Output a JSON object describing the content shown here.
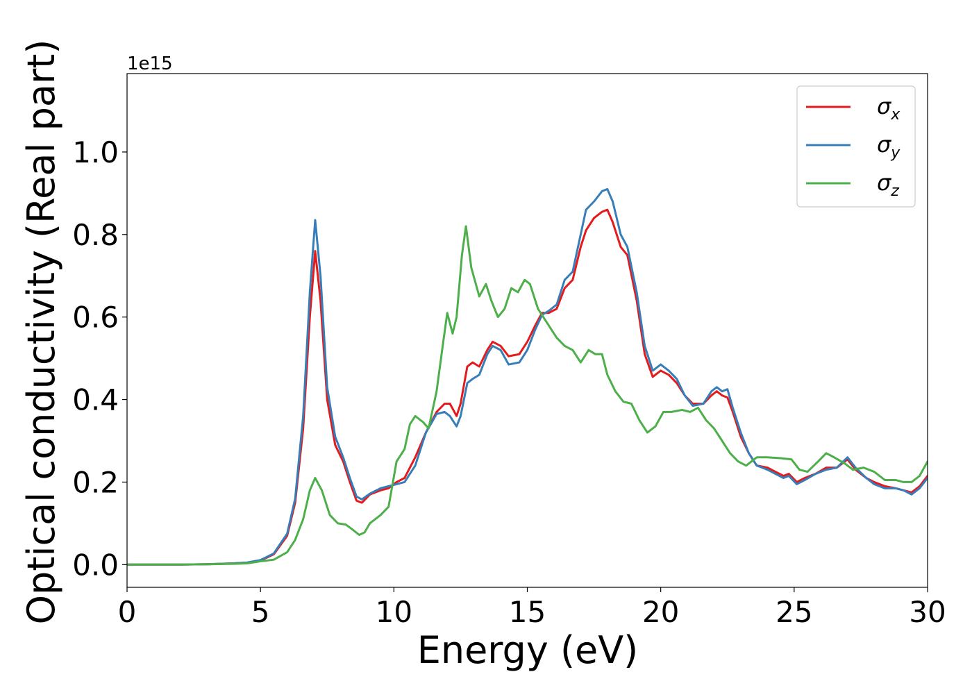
{
  "chart_data": {
    "type": "line",
    "xlabel": "Energy (eV)",
    "ylabel": "Optical conductivity (Real part)",
    "y_offset_label": "1e15",
    "y_scale": 1000000000000000.0,
    "xlim": [
      0,
      30
    ],
    "ylim": [
      -0.055,
      1.19
    ],
    "x_ticks": [
      0,
      5,
      10,
      15,
      20,
      25,
      30
    ],
    "x_tick_labels": [
      "0",
      "5",
      "10",
      "15",
      "20",
      "25",
      "30"
    ],
    "y_ticks": [
      0.0,
      0.2,
      0.4,
      0.6,
      0.8,
      1.0
    ],
    "y_tick_labels": [
      "0.0",
      "0.2",
      "0.4",
      "0.6",
      "0.8",
      "1.0"
    ],
    "grid": false,
    "legend_position": "top-right",
    "series": [
      {
        "name": "σx",
        "symbol": "σ",
        "subscript": "x",
        "color": "#e41a1c",
        "points": [
          [
            0,
            0
          ],
          [
            2,
            0
          ],
          [
            3,
            0.001
          ],
          [
            4,
            0.003
          ],
          [
            4.5,
            0.005
          ],
          [
            5,
            0.01
          ],
          [
            5.5,
            0.025
          ],
          [
            6,
            0.07
          ],
          [
            6.3,
            0.15
          ],
          [
            6.6,
            0.33
          ],
          [
            6.85,
            0.6
          ],
          [
            7.05,
            0.76
          ],
          [
            7.25,
            0.64
          ],
          [
            7.5,
            0.4
          ],
          [
            7.8,
            0.29
          ],
          [
            8.1,
            0.25
          ],
          [
            8.35,
            0.2
          ],
          [
            8.6,
            0.155
          ],
          [
            8.8,
            0.15
          ],
          [
            9.1,
            0.17
          ],
          [
            9.5,
            0.18
          ],
          [
            9.8,
            0.185
          ],
          [
            10.1,
            0.2
          ],
          [
            10.4,
            0.21
          ],
          [
            10.8,
            0.26
          ],
          [
            11.2,
            0.32
          ],
          [
            11.6,
            0.37
          ],
          [
            11.9,
            0.39
          ],
          [
            12.1,
            0.39
          ],
          [
            12.35,
            0.36
          ],
          [
            12.5,
            0.39
          ],
          [
            12.75,
            0.48
          ],
          [
            12.95,
            0.49
          ],
          [
            13.2,
            0.48
          ],
          [
            13.5,
            0.52
          ],
          [
            13.7,
            0.54
          ],
          [
            14.0,
            0.53
          ],
          [
            14.3,
            0.505
          ],
          [
            14.7,
            0.51
          ],
          [
            15.0,
            0.54
          ],
          [
            15.3,
            0.58
          ],
          [
            15.55,
            0.61
          ],
          [
            15.8,
            0.61
          ],
          [
            16.1,
            0.62
          ],
          [
            16.4,
            0.67
          ],
          [
            16.7,
            0.69
          ],
          [
            17.0,
            0.77
          ],
          [
            17.2,
            0.81
          ],
          [
            17.5,
            0.84
          ],
          [
            17.8,
            0.855
          ],
          [
            18.0,
            0.86
          ],
          [
            18.2,
            0.83
          ],
          [
            18.5,
            0.77
          ],
          [
            18.75,
            0.75
          ],
          [
            19.1,
            0.64
          ],
          [
            19.4,
            0.51
          ],
          [
            19.7,
            0.455
          ],
          [
            20.0,
            0.47
          ],
          [
            20.3,
            0.46
          ],
          [
            20.6,
            0.44
          ],
          [
            20.9,
            0.41
          ],
          [
            21.2,
            0.39
          ],
          [
            21.6,
            0.39
          ],
          [
            21.9,
            0.41
          ],
          [
            22.1,
            0.42
          ],
          [
            22.3,
            0.41
          ],
          [
            22.5,
            0.405
          ],
          [
            22.7,
            0.37
          ],
          [
            23.0,
            0.31
          ],
          [
            23.3,
            0.27
          ],
          [
            23.6,
            0.24
          ],
          [
            24.0,
            0.235
          ],
          [
            24.3,
            0.225
          ],
          [
            24.6,
            0.215
          ],
          [
            24.8,
            0.22
          ],
          [
            25.1,
            0.2
          ],
          [
            25.4,
            0.21
          ],
          [
            25.8,
            0.22
          ],
          [
            26.2,
            0.235
          ],
          [
            26.6,
            0.235
          ],
          [
            27.0,
            0.255
          ],
          [
            27.3,
            0.23
          ],
          [
            27.7,
            0.21
          ],
          [
            28.0,
            0.2
          ],
          [
            28.4,
            0.19
          ],
          [
            28.8,
            0.185
          ],
          [
            29.1,
            0.18
          ],
          [
            29.4,
            0.175
          ],
          [
            29.7,
            0.19
          ],
          [
            30.0,
            0.215
          ]
        ]
      },
      {
        "name": "σy",
        "symbol": "σ",
        "subscript": "y",
        "color": "#377eb8",
        "points": [
          [
            0,
            0
          ],
          [
            2,
            0
          ],
          [
            3,
            0.001
          ],
          [
            4,
            0.003
          ],
          [
            4.5,
            0.005
          ],
          [
            5,
            0.011
          ],
          [
            5.5,
            0.027
          ],
          [
            6,
            0.075
          ],
          [
            6.3,
            0.16
          ],
          [
            6.6,
            0.36
          ],
          [
            6.85,
            0.66
          ],
          [
            7.05,
            0.835
          ],
          [
            7.25,
            0.7
          ],
          [
            7.5,
            0.43
          ],
          [
            7.8,
            0.31
          ],
          [
            8.1,
            0.26
          ],
          [
            8.35,
            0.21
          ],
          [
            8.6,
            0.165
          ],
          [
            8.8,
            0.158
          ],
          [
            9.1,
            0.172
          ],
          [
            9.5,
            0.185
          ],
          [
            9.8,
            0.19
          ],
          [
            10.1,
            0.195
          ],
          [
            10.4,
            0.2
          ],
          [
            10.8,
            0.24
          ],
          [
            11.2,
            0.32
          ],
          [
            11.6,
            0.365
          ],
          [
            11.9,
            0.37
          ],
          [
            12.1,
            0.36
          ],
          [
            12.35,
            0.335
          ],
          [
            12.5,
            0.36
          ],
          [
            12.75,
            0.44
          ],
          [
            12.95,
            0.45
          ],
          [
            13.2,
            0.46
          ],
          [
            13.5,
            0.51
          ],
          [
            13.7,
            0.53
          ],
          [
            14.0,
            0.52
          ],
          [
            14.3,
            0.485
          ],
          [
            14.7,
            0.49
          ],
          [
            15.0,
            0.52
          ],
          [
            15.3,
            0.57
          ],
          [
            15.55,
            0.605
          ],
          [
            15.8,
            0.615
          ],
          [
            16.1,
            0.63
          ],
          [
            16.4,
            0.69
          ],
          [
            16.7,
            0.71
          ],
          [
            17.0,
            0.8
          ],
          [
            17.2,
            0.86
          ],
          [
            17.5,
            0.88
          ],
          [
            17.8,
            0.905
          ],
          [
            18.0,
            0.91
          ],
          [
            18.2,
            0.88
          ],
          [
            18.5,
            0.8
          ],
          [
            18.75,
            0.77
          ],
          [
            19.1,
            0.66
          ],
          [
            19.4,
            0.53
          ],
          [
            19.7,
            0.47
          ],
          [
            20.0,
            0.485
          ],
          [
            20.3,
            0.47
          ],
          [
            20.6,
            0.45
          ],
          [
            20.9,
            0.41
          ],
          [
            21.2,
            0.385
          ],
          [
            21.6,
            0.39
          ],
          [
            21.9,
            0.42
          ],
          [
            22.1,
            0.43
          ],
          [
            22.3,
            0.42
          ],
          [
            22.5,
            0.425
          ],
          [
            22.7,
            0.38
          ],
          [
            23.0,
            0.32
          ],
          [
            23.3,
            0.27
          ],
          [
            23.6,
            0.24
          ],
          [
            24.0,
            0.23
          ],
          [
            24.3,
            0.22
          ],
          [
            24.6,
            0.21
          ],
          [
            24.8,
            0.215
          ],
          [
            25.1,
            0.195
          ],
          [
            25.4,
            0.205
          ],
          [
            25.8,
            0.22
          ],
          [
            26.2,
            0.23
          ],
          [
            26.6,
            0.235
          ],
          [
            27.0,
            0.26
          ],
          [
            27.3,
            0.235
          ],
          [
            27.7,
            0.21
          ],
          [
            28.0,
            0.195
          ],
          [
            28.4,
            0.185
          ],
          [
            28.8,
            0.185
          ],
          [
            29.1,
            0.18
          ],
          [
            29.4,
            0.17
          ],
          [
            29.7,
            0.185
          ],
          [
            30.0,
            0.21
          ]
        ]
      },
      {
        "name": "σz",
        "symbol": "σ",
        "subscript": "z",
        "color": "#4daf4a",
        "points": [
          [
            0,
            0
          ],
          [
            2,
            0
          ],
          [
            3,
            0.001
          ],
          [
            4,
            0.002
          ],
          [
            4.5,
            0.003
          ],
          [
            5,
            0.008
          ],
          [
            5.5,
            0.012
          ],
          [
            6,
            0.03
          ],
          [
            6.3,
            0.06
          ],
          [
            6.6,
            0.11
          ],
          [
            6.85,
            0.18
          ],
          [
            7.05,
            0.21
          ],
          [
            7.3,
            0.18
          ],
          [
            7.6,
            0.12
          ],
          [
            7.9,
            0.1
          ],
          [
            8.2,
            0.097
          ],
          [
            8.45,
            0.085
          ],
          [
            8.7,
            0.072
          ],
          [
            8.9,
            0.078
          ],
          [
            9.1,
            0.1
          ],
          [
            9.5,
            0.12
          ],
          [
            9.8,
            0.14
          ],
          [
            10.1,
            0.25
          ],
          [
            10.4,
            0.28
          ],
          [
            10.6,
            0.34
          ],
          [
            10.8,
            0.36
          ],
          [
            11.1,
            0.345
          ],
          [
            11.3,
            0.33
          ],
          [
            11.6,
            0.42
          ],
          [
            11.85,
            0.54
          ],
          [
            12.0,
            0.61
          ],
          [
            12.2,
            0.56
          ],
          [
            12.35,
            0.6
          ],
          [
            12.55,
            0.75
          ],
          [
            12.7,
            0.82
          ],
          [
            12.9,
            0.72
          ],
          [
            13.2,
            0.65
          ],
          [
            13.45,
            0.68
          ],
          [
            13.65,
            0.64
          ],
          [
            13.9,
            0.6
          ],
          [
            14.15,
            0.62
          ],
          [
            14.4,
            0.67
          ],
          [
            14.65,
            0.66
          ],
          [
            14.9,
            0.69
          ],
          [
            15.1,
            0.68
          ],
          [
            15.4,
            0.62
          ],
          [
            15.7,
            0.59
          ],
          [
            16.1,
            0.55
          ],
          [
            16.4,
            0.53
          ],
          [
            16.7,
            0.52
          ],
          [
            17.0,
            0.49
          ],
          [
            17.3,
            0.52
          ],
          [
            17.55,
            0.51
          ],
          [
            17.8,
            0.51
          ],
          [
            18.0,
            0.46
          ],
          [
            18.3,
            0.42
          ],
          [
            18.6,
            0.395
          ],
          [
            18.9,
            0.39
          ],
          [
            19.2,
            0.35
          ],
          [
            19.5,
            0.32
          ],
          [
            19.8,
            0.335
          ],
          [
            20.1,
            0.37
          ],
          [
            20.4,
            0.37
          ],
          [
            20.8,
            0.375
          ],
          [
            21.1,
            0.37
          ],
          [
            21.4,
            0.38
          ],
          [
            21.7,
            0.35
          ],
          [
            22.0,
            0.33
          ],
          [
            22.3,
            0.3
          ],
          [
            22.6,
            0.27
          ],
          [
            22.9,
            0.25
          ],
          [
            23.2,
            0.24
          ],
          [
            23.6,
            0.26
          ],
          [
            24.0,
            0.26
          ],
          [
            24.5,
            0.258
          ],
          [
            24.9,
            0.255
          ],
          [
            25.2,
            0.23
          ],
          [
            25.5,
            0.225
          ],
          [
            25.9,
            0.25
          ],
          [
            26.2,
            0.27
          ],
          [
            26.5,
            0.26
          ],
          [
            26.9,
            0.245
          ],
          [
            27.2,
            0.23
          ],
          [
            27.6,
            0.235
          ],
          [
            28.0,
            0.225
          ],
          [
            28.4,
            0.205
          ],
          [
            28.8,
            0.205
          ],
          [
            29.1,
            0.2
          ],
          [
            29.4,
            0.2
          ],
          [
            29.7,
            0.215
          ],
          [
            30.0,
            0.25
          ]
        ]
      }
    ]
  }
}
